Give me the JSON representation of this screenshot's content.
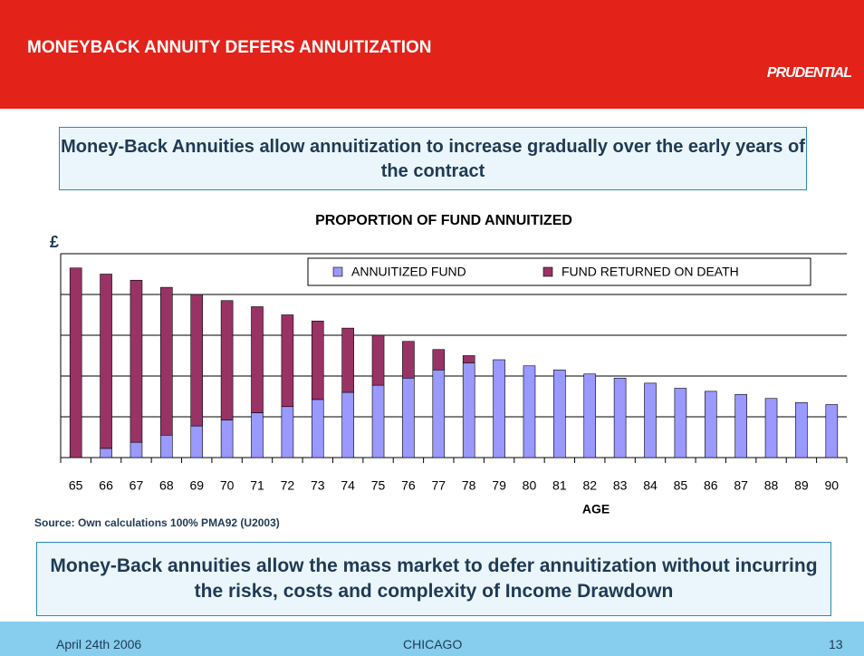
{
  "header": {
    "title": "MONEYBACK ANNUITY DEFERS ANNUITIZATION",
    "logo": "PRUDENTIAL"
  },
  "callout_top": "Money-Back Annuities allow annuitization to increase gradually over the early years of the contract",
  "chart_data": {
    "type": "bar",
    "stacked": true,
    "title": "PROPORTION OF FUND ANNUITIZED",
    "ylabel": "£",
    "xlabel": "AGE",
    "categories": [
      "65",
      "66",
      "67",
      "68",
      "69",
      "70",
      "71",
      "72",
      "73",
      "74",
      "75",
      "76",
      "77",
      "78",
      "79",
      "80",
      "81",
      "82",
      "83",
      "84",
      "85",
      "86",
      "87",
      "88",
      "89",
      "90"
    ],
    "series": [
      {
        "name": "ANNUITIZED FUND",
        "color": "#9999ff",
        "values": [
          0,
          4.5,
          7.5,
          11,
          15.5,
          18.5,
          22,
          25,
          28.5,
          32,
          35.5,
          39,
          43,
          46.5,
          48,
          45,
          43,
          41,
          39,
          36.5,
          34,
          32.5,
          31,
          29,
          27,
          26
        ]
      },
      {
        "name": "FUND RETURNED ON DEATH",
        "color": "#993366",
        "values": [
          93,
          85.5,
          79.5,
          72.5,
          64.5,
          58.5,
          52,
          45,
          38.5,
          31.5,
          24.5,
          18,
          10,
          3.5,
          0,
          0,
          0,
          0,
          0,
          0,
          0,
          0,
          0,
          0,
          0,
          0
        ]
      }
    ],
    "ylim": [
      0,
      100
    ],
    "yticks": [
      0,
      20,
      40,
      60,
      80,
      100
    ],
    "grid": true,
    "legend": "top-right"
  },
  "source": "Source: Own calculations 100% PMA92 (U2003)",
  "callout_bottom": "Money-Back annuities allow the mass market to defer annuitization without incurring the risks, costs and complexity of Income Drawdown",
  "footer": {
    "date": "April 24th 2006",
    "location": "CHICAGO",
    "page": "13"
  }
}
